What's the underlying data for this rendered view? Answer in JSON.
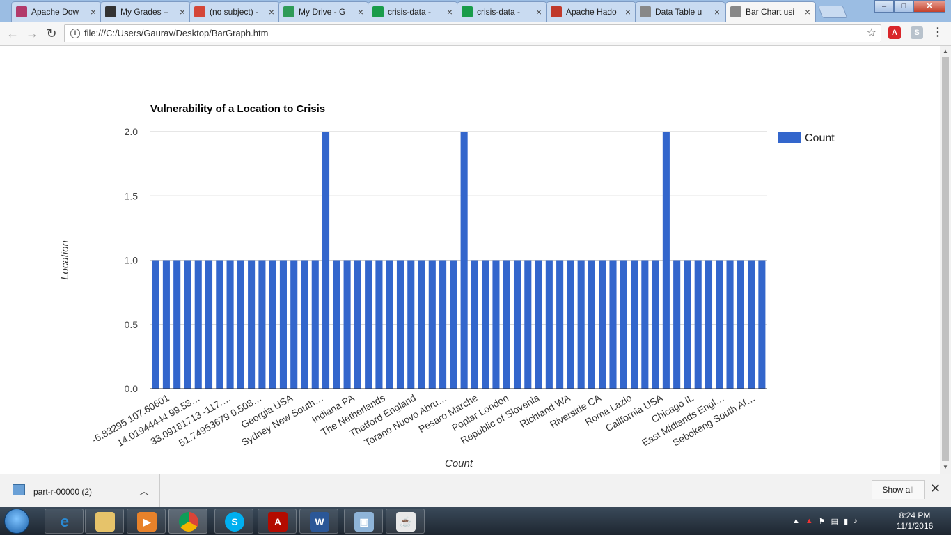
{
  "browser": {
    "tabs": [
      {
        "label": "Apache Dow",
        "icon": "feather-icon",
        "color": "#b23a6b"
      },
      {
        "label": "My Grades –",
        "icon": "bb-icon",
        "color": "#333333"
      },
      {
        "label": "(no subject) -",
        "icon": "gmail-icon",
        "color": "#d44638"
      },
      {
        "label": "My Drive - G",
        "icon": "drive-icon",
        "color": "#2f9b57"
      },
      {
        "label": "crisis-data -",
        "icon": "sheets-chart-icon",
        "color": "#1a9c4a"
      },
      {
        "label": "crisis-data -",
        "icon": "sheets-chart-icon",
        "color": "#1a9c4a"
      },
      {
        "label": "Apache Hado",
        "icon": "feather-icon",
        "color": "#c0392b"
      },
      {
        "label": "Data Table u",
        "icon": "page-icon",
        "color": "#888888"
      },
      {
        "label": "Bar Chart usi",
        "icon": "page-icon",
        "color": "#888888",
        "active": true
      }
    ],
    "url": "file:///C:/Users/Gaurav/Desktop/BarGraph.htm"
  },
  "chart_data": {
    "type": "bar",
    "title": "Vulnerability of a Location to Crisis",
    "xlabel": "Count",
    "ylabel": "Location",
    "ylim": [
      0,
      2
    ],
    "yticks": [
      "0.0",
      "0.5",
      "1.0",
      "1.5",
      "2.0"
    ],
    "legend": "top-right",
    "grid": true,
    "color": "#3366cc",
    "series": [
      {
        "name": "Count",
        "values": [
          1,
          1,
          1,
          1,
          1,
          1,
          1,
          1,
          1,
          1,
          1,
          1,
          1,
          1,
          1,
          1,
          2,
          1,
          1,
          1,
          1,
          1,
          1,
          1,
          1,
          1,
          1,
          1,
          1,
          2,
          1,
          1,
          1,
          1,
          1,
          1,
          1,
          1,
          1,
          1,
          1,
          1,
          1,
          1,
          1,
          1,
          1,
          1,
          2,
          1,
          1,
          1,
          1,
          1,
          1,
          1,
          1,
          1
        ]
      }
    ],
    "tick_labels": [
      "-6.83295 107.60601",
      "14.01944444 99.53…",
      "33.09181713 -117.…",
      "51.74953679 0.508…",
      "Georgia USA",
      "Sydney New South…",
      "Indiana PA",
      "The Netherlands",
      "Thetford England",
      "Torano Nuovo Abru…",
      "Pesaro Marche",
      "Poplar London",
      "Republic of Slovenia",
      "Richland WA",
      "Riverside CA",
      "Roma Lazio",
      "California USA",
      "Chicago IL",
      "East Midlands Engl…",
      "Sebokeng South Af…"
    ]
  },
  "downloads": {
    "item": "part-r-00000 (2)",
    "show_all": "Show all"
  },
  "taskbar": {
    "time": "8:24 PM",
    "date": "11/1/2016"
  }
}
